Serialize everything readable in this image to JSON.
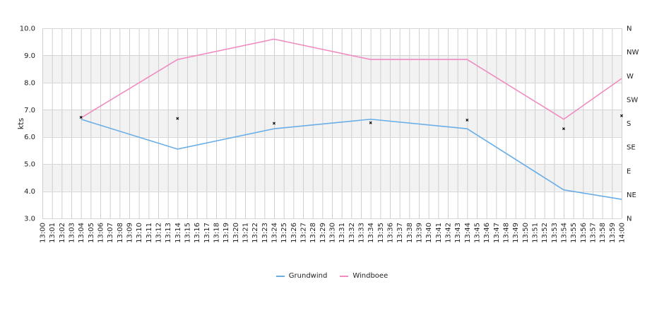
{
  "chart_data": {
    "type": "line",
    "ylabel": "kts",
    "ylim": [
      3.0,
      10.0
    ],
    "yticks": [
      "3.0",
      "4.0",
      "5.0",
      "6.0",
      "7.0",
      "8.0",
      "9.0",
      "10.0"
    ],
    "xlim": [
      "13:00",
      "14:00"
    ],
    "x_tick_labels": [
      "13:00",
      "13:01",
      "13:02",
      "13:03",
      "13:04",
      "13:05",
      "13:06",
      "13:07",
      "13:08",
      "13:09",
      "13:10",
      "13:11",
      "13:12",
      "13:13",
      "13:14",
      "13:15",
      "13:16",
      "13:17",
      "13:18",
      "13:19",
      "13:20",
      "13:21",
      "13:22",
      "13:23",
      "13:24",
      "13:25",
      "13:26",
      "13:27",
      "13:28",
      "13:29",
      "13:30",
      "13:31",
      "13:32",
      "13:33",
      "13:34",
      "13:35",
      "13:36",
      "13:37",
      "13:38",
      "13:39",
      "13:40",
      "13:41",
      "13:42",
      "13:43",
      "13:44",
      "13:45",
      "13:46",
      "13:47",
      "13:48",
      "13:49",
      "13:50",
      "13:51",
      "13:52",
      "13:53",
      "13:54",
      "13:55",
      "13:56",
      "13:57",
      "13:58",
      "13:59",
      "14:00"
    ],
    "right_axis_labels": [
      "N",
      "NE",
      "E",
      "SE",
      "S",
      "SW",
      "W",
      "NW",
      "N"
    ],
    "grid": true,
    "legend_position": "bottom",
    "series": [
      {
        "name": "Grundwind",
        "color": "#6aaee8",
        "x": [
          "13:04",
          "13:14",
          "13:24",
          "13:34",
          "13:44",
          "13:54",
          "14:00"
        ],
        "values": [
          6.65,
          5.55,
          6.3,
          6.65,
          6.3,
          4.05,
          3.7
        ]
      },
      {
        "name": "Windboee",
        "color": "#f08cc0",
        "x": [
          "13:04",
          "13:14",
          "13:24",
          "13:34",
          "13:44",
          "13:54",
          "14:00"
        ],
        "values": [
          6.7,
          8.85,
          9.6,
          8.85,
          8.85,
          6.65,
          8.15
        ]
      }
    ],
    "direction_markers": {
      "x": [
        "13:04",
        "13:14",
        "13:24",
        "13:34",
        "13:44",
        "13:54",
        "14:00"
      ],
      "values": [
        6.72,
        6.68,
        6.5,
        6.52,
        6.62,
        6.3,
        6.78
      ]
    }
  }
}
